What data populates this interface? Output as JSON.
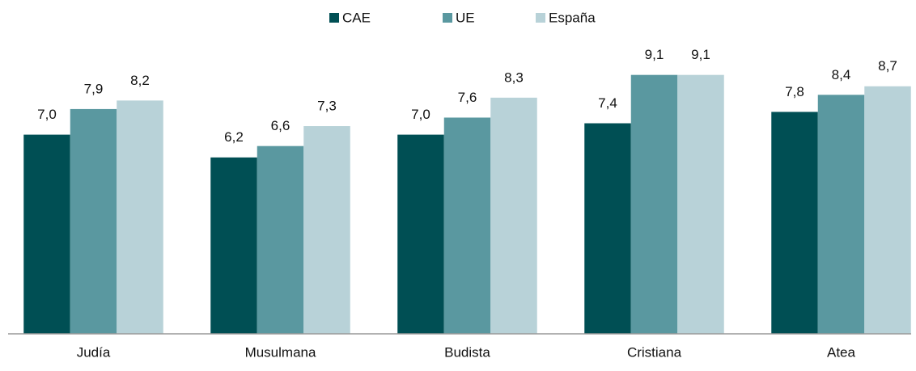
{
  "chart_data": {
    "type": "bar",
    "categories": [
      "Judía",
      "Musulmana",
      "Budista",
      "Cristiana",
      "Atea"
    ],
    "series": [
      {
        "name": "CAE",
        "color": "#004f54",
        "values": [
          7.0,
          6.2,
          7.0,
          7.4,
          7.8
        ],
        "value_labels": [
          "7,0",
          "6,2",
          "7,0",
          "7,4",
          "7,8"
        ]
      },
      {
        "name": "UE",
        "color": "#5a98a0",
        "values": [
          7.9,
          6.6,
          7.6,
          9.1,
          8.4
        ],
        "value_labels": [
          "7,9",
          "6,6",
          "7,6",
          "9,1",
          "8,4"
        ]
      },
      {
        "name": "España",
        "color": "#b8d2d8",
        "values": [
          8.2,
          7.3,
          8.3,
          9.1,
          8.7
        ],
        "value_labels": [
          "8,2",
          "7,3",
          "8,3",
          "9,1",
          "8,7"
        ]
      }
    ],
    "legend": "top"
  }
}
